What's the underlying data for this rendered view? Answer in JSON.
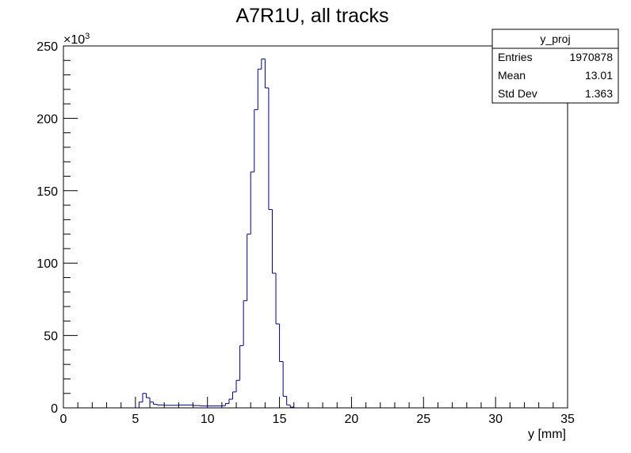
{
  "chart_data": {
    "type": "histogram",
    "title": "A7R1U, all tracks",
    "xlabel": "y [mm]",
    "ylabel": "",
    "y_multiplier_label": "×10",
    "y_multiplier_exponent": "3",
    "xlim": [
      0,
      35
    ],
    "ylim": [
      0,
      250
    ],
    "x_ticks": [
      0,
      5,
      10,
      15,
      20,
      25,
      30,
      35
    ],
    "y_ticks": [
      0,
      50,
      100,
      150,
      200,
      250
    ],
    "grid": false,
    "line_color": "#000080",
    "bin_width": 0.25,
    "bins": [
      {
        "x0": 5.25,
        "x1": 5.5,
        "y": 4
      },
      {
        "x0": 5.5,
        "x1": 5.75,
        "y": 10
      },
      {
        "x0": 5.75,
        "x1": 6.0,
        "y": 7
      },
      {
        "x0": 6.0,
        "x1": 6.25,
        "y": 4
      },
      {
        "x0": 6.25,
        "x1": 6.5,
        "y": 2.5
      },
      {
        "x0": 6.5,
        "x1": 7.0,
        "y": 2
      },
      {
        "x0": 7.0,
        "x1": 8.0,
        "y": 1.8
      },
      {
        "x0": 8.0,
        "x1": 9.0,
        "y": 2
      },
      {
        "x0": 9.0,
        "x1": 9.5,
        "y": 1.6
      },
      {
        "x0": 9.5,
        "x1": 11.0,
        "y": 1.3
      },
      {
        "x0": 11.0,
        "x1": 11.25,
        "y": 1.5
      },
      {
        "x0": 11.25,
        "x1": 11.5,
        "y": 3
      },
      {
        "x0": 11.5,
        "x1": 11.75,
        "y": 6
      },
      {
        "x0": 11.75,
        "x1": 12.0,
        "y": 11
      },
      {
        "x0": 12.0,
        "x1": 12.25,
        "y": 19
      },
      {
        "x0": 12.25,
        "x1": 12.5,
        "y": 43
      },
      {
        "x0": 12.5,
        "x1": 12.75,
        "y": 74
      },
      {
        "x0": 12.75,
        "x1": 13.0,
        "y": 120
      },
      {
        "x0": 13.0,
        "x1": 13.25,
        "y": 163
      },
      {
        "x0": 13.25,
        "x1": 13.5,
        "y": 206
      },
      {
        "x0": 13.5,
        "x1": 13.75,
        "y": 234
      },
      {
        "x0": 13.75,
        "x1": 14.0,
        "y": 241
      },
      {
        "x0": 14.0,
        "x1": 14.25,
        "y": 221
      },
      {
        "x0": 14.25,
        "x1": 14.5,
        "y": 137
      },
      {
        "x0": 14.5,
        "x1": 14.75,
        "y": 93
      },
      {
        "x0": 14.75,
        "x1": 15.0,
        "y": 58
      },
      {
        "x0": 15.0,
        "x1": 15.25,
        "y": 32
      },
      {
        "x0": 15.25,
        "x1": 15.5,
        "y": 8
      },
      {
        "x0": 15.5,
        "x1": 15.75,
        "y": 2
      },
      {
        "x0": 15.75,
        "x1": 16.0,
        "y": 0.5
      }
    ],
    "stats_box": {
      "name": "y_proj",
      "rows": [
        {
          "label": "Entries",
          "value": "1970878"
        },
        {
          "label": "Mean",
          "value": "13.01"
        },
        {
          "label": "Std Dev",
          "value": "1.363"
        }
      ]
    }
  }
}
